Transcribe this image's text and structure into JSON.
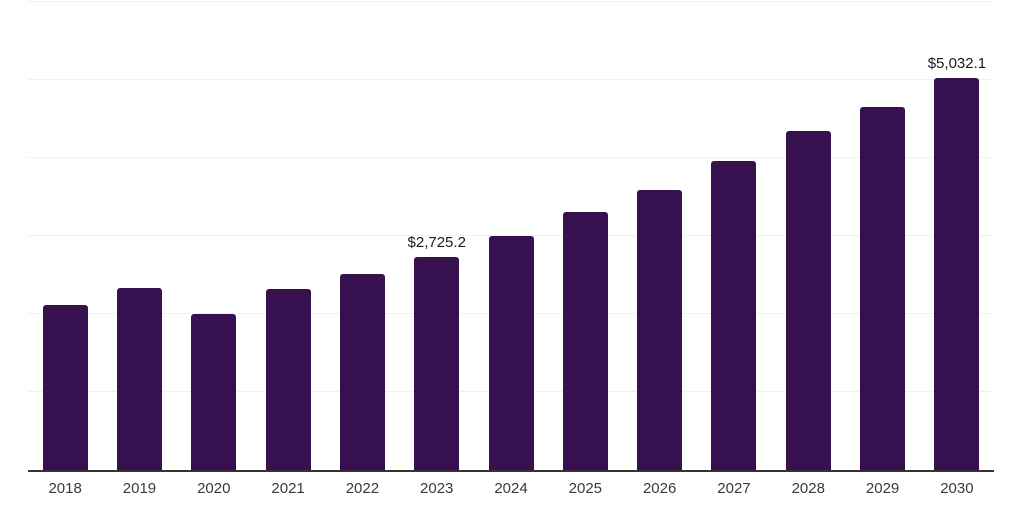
{
  "page": {
    "background_color": "#ffffff"
  },
  "chart_data": {
    "type": "bar",
    "title": "",
    "xlabel": "",
    "ylabel": "",
    "categories": [
      "2018",
      "2019",
      "2020",
      "2021",
      "2022",
      "2023",
      "2024",
      "2025",
      "2026",
      "2027",
      "2028",
      "2029",
      "2030"
    ],
    "values": [
      2115,
      2330,
      1995,
      2320,
      2515,
      2725.2,
      3000,
      3310,
      3595,
      3960,
      4340,
      4650,
      5032.1
    ],
    "value_labels": {
      "2023": "$2,725.2",
      "2030": "$5,032.1"
    },
    "ylim": [
      0,
      6000
    ],
    "gridline_step": 1000,
    "grid": true,
    "y_axis_ticks_visible": false,
    "legend_position": "none",
    "colors": {
      "bar": "#37104F",
      "gridline": "#f0f0f0",
      "axis_line": "#333333",
      "tick_label": "#3a3a3a",
      "value_label": "#1a1a1a"
    }
  }
}
